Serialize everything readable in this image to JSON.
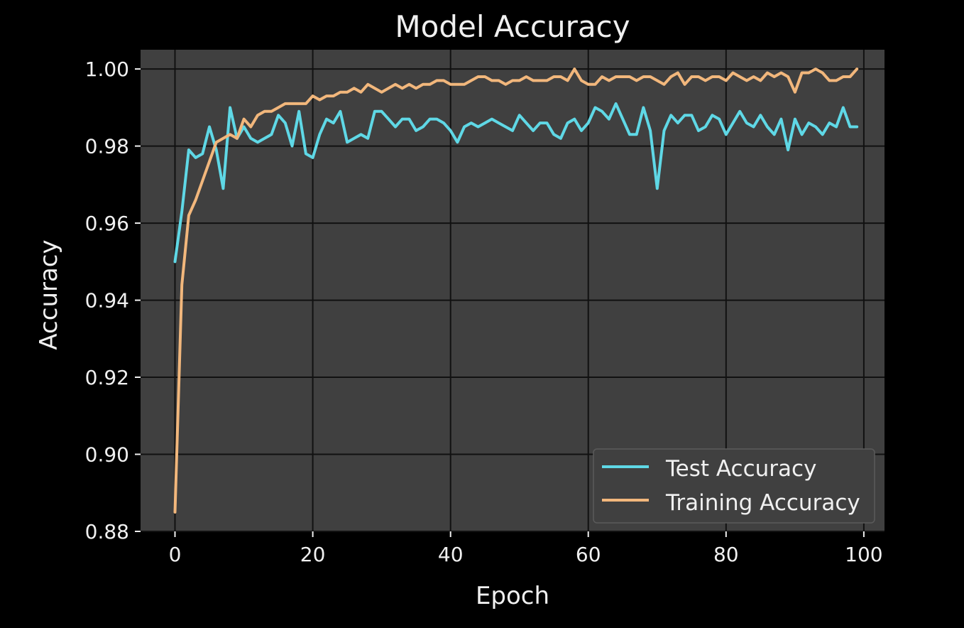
{
  "chart_data": {
    "type": "line",
    "title": "Model Accuracy",
    "xlabel": "Epoch",
    "ylabel": "Accuracy",
    "xlim": [
      -5,
      103
    ],
    "ylim": [
      0.88,
      1.005
    ],
    "xticks": [
      0,
      20,
      40,
      60,
      80,
      100
    ],
    "xtick_labels": [
      "0",
      "20",
      "40",
      "60",
      "80",
      "100"
    ],
    "yticks": [
      0.88,
      0.9,
      0.92,
      0.94,
      0.96,
      0.98,
      1.0
    ],
    "ytick_labels": [
      "0.88",
      "0.90",
      "0.92",
      "0.94",
      "0.96",
      "0.98",
      "1.00"
    ],
    "grid": true,
    "legend_position": "lower-right",
    "colors": {
      "figure_background": "#000000",
      "plot_background": "#404040",
      "grid": "#111111",
      "test": "#5fd8e6",
      "training": "#f2b77c"
    },
    "x": [
      0,
      1,
      2,
      3,
      4,
      5,
      6,
      7,
      8,
      9,
      10,
      11,
      12,
      13,
      14,
      15,
      16,
      17,
      18,
      19,
      20,
      21,
      22,
      23,
      24,
      25,
      26,
      27,
      28,
      29,
      30,
      31,
      32,
      33,
      34,
      35,
      36,
      37,
      38,
      39,
      40,
      41,
      42,
      43,
      44,
      45,
      46,
      47,
      48,
      49,
      50,
      51,
      52,
      53,
      54,
      55,
      56,
      57,
      58,
      59,
      60,
      61,
      62,
      63,
      64,
      65,
      66,
      67,
      68,
      69,
      70,
      71,
      72,
      73,
      74,
      75,
      76,
      77,
      78,
      79,
      80,
      81,
      82,
      83,
      84,
      85,
      86,
      87,
      88,
      89,
      90,
      91,
      92,
      93,
      94,
      95,
      96,
      97,
      98,
      99
    ],
    "series": [
      {
        "name": "Test Accuracy",
        "color": "#5fd8e6",
        "values": [
          0.95,
          0.963,
          0.979,
          0.977,
          0.978,
          0.985,
          0.979,
          0.969,
          0.99,
          0.982,
          0.985,
          0.982,
          0.981,
          0.982,
          0.983,
          0.988,
          0.986,
          0.98,
          0.989,
          0.978,
          0.977,
          0.983,
          0.987,
          0.986,
          0.989,
          0.981,
          0.982,
          0.983,
          0.982,
          0.989,
          0.989,
          0.987,
          0.985,
          0.987,
          0.987,
          0.984,
          0.985,
          0.987,
          0.987,
          0.986,
          0.984,
          0.981,
          0.985,
          0.986,
          0.985,
          0.986,
          0.987,
          0.986,
          0.985,
          0.984,
          0.988,
          0.986,
          0.984,
          0.986,
          0.986,
          0.983,
          0.982,
          0.986,
          0.987,
          0.984,
          0.986,
          0.99,
          0.989,
          0.987,
          0.991,
          0.987,
          0.983,
          0.983,
          0.99,
          0.984,
          0.969,
          0.984,
          0.988,
          0.986,
          0.988,
          0.988,
          0.984,
          0.985,
          0.988,
          0.987,
          0.983,
          0.986,
          0.989,
          0.986,
          0.985,
          0.988,
          0.985,
          0.983,
          0.987,
          0.979,
          0.987,
          0.983,
          0.986,
          0.985,
          0.983,
          0.986,
          0.985,
          0.99,
          0.985,
          0.985
        ]
      },
      {
        "name": "Training Accuracy",
        "color": "#f2b77c",
        "values": [
          0.885,
          0.944,
          0.962,
          0.966,
          0.971,
          0.976,
          0.981,
          0.982,
          0.983,
          0.982,
          0.987,
          0.985,
          0.988,
          0.989,
          0.989,
          0.99,
          0.991,
          0.991,
          0.991,
          0.991,
          0.993,
          0.992,
          0.993,
          0.993,
          0.994,
          0.994,
          0.995,
          0.994,
          0.996,
          0.995,
          0.994,
          0.995,
          0.996,
          0.995,
          0.996,
          0.995,
          0.996,
          0.996,
          0.997,
          0.997,
          0.996,
          0.996,
          0.996,
          0.997,
          0.998,
          0.998,
          0.997,
          0.997,
          0.996,
          0.997,
          0.997,
          0.998,
          0.997,
          0.997,
          0.997,
          0.998,
          0.998,
          0.997,
          1.0,
          0.997,
          0.996,
          0.996,
          0.998,
          0.997,
          0.998,
          0.998,
          0.998,
          0.997,
          0.998,
          0.998,
          0.997,
          0.996,
          0.998,
          0.999,
          0.996,
          0.998,
          0.998,
          0.997,
          0.998,
          0.998,
          0.997,
          0.999,
          0.998,
          0.997,
          0.998,
          0.997,
          0.999,
          0.998,
          0.999,
          0.998,
          0.994,
          0.999,
          0.999,
          1.0,
          0.999,
          0.997,
          0.997,
          0.998,
          0.998,
          1.0
        ]
      }
    ]
  }
}
